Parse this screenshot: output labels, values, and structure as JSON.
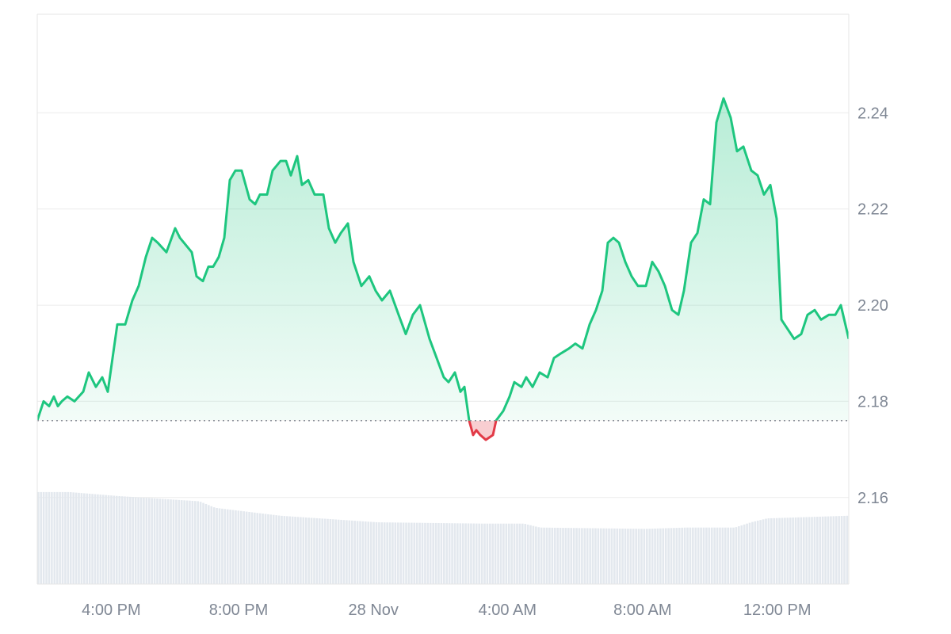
{
  "chart_data": {
    "type": "area",
    "colors": {
      "up_line": "#1ec67f",
      "down_line": "#e23a47",
      "baseline": "#8a8f99",
      "grid": "#ececec",
      "volume": "#e3e8ee"
    },
    "ylim": [
      2.142,
      2.2605
    ],
    "baseline_value": 2.176,
    "y_ticks": [
      {
        "value": 2.16,
        "label": "2.16"
      },
      {
        "value": 2.18,
        "label": "2.18"
      },
      {
        "value": 2.2,
        "label": "2.20"
      },
      {
        "value": 2.22,
        "label": "2.22"
      },
      {
        "value": 2.24,
        "label": "2.24"
      }
    ],
    "x_ticks": [
      {
        "value": 0.0912,
        "label": "4:00 PM"
      },
      {
        "value": 0.2481,
        "label": "8:00 PM"
      },
      {
        "value": 0.4143,
        "label": "28 Nov"
      },
      {
        "value": 0.5794,
        "label": "4:00 AM"
      },
      {
        "value": 0.7459,
        "label": "8:00 AM"
      },
      {
        "value": 0.9118,
        "label": "12:00 PM"
      }
    ],
    "price_points": [
      [
        0.0,
        2.176
      ],
      [
        0.0078,
        2.18
      ],
      [
        0.0146,
        2.179
      ],
      [
        0.0205,
        2.181
      ],
      [
        0.0254,
        2.179
      ],
      [
        0.0303,
        2.18
      ],
      [
        0.0371,
        2.181
      ],
      [
        0.0459,
        2.18
      ],
      [
        0.0566,
        2.182
      ],
      [
        0.0635,
        2.186
      ],
      [
        0.0723,
        2.183
      ],
      [
        0.0801,
        2.185
      ],
      [
        0.0869,
        2.182
      ],
      [
        0.0986,
        2.196
      ],
      [
        0.1084,
        2.196
      ],
      [
        0.1172,
        2.201
      ],
      [
        0.125,
        2.204
      ],
      [
        0.1338,
        2.21
      ],
      [
        0.1416,
        2.214
      ],
      [
        0.1484,
        2.213
      ],
      [
        0.1592,
        2.211
      ],
      [
        0.1699,
        2.216
      ],
      [
        0.1758,
        2.214
      ],
      [
        0.1904,
        2.211
      ],
      [
        0.1963,
        2.206
      ],
      [
        0.2041,
        2.205
      ],
      [
        0.2109,
        2.208
      ],
      [
        0.2168,
        2.208
      ],
      [
        0.2236,
        2.21
      ],
      [
        0.2305,
        2.214
      ],
      [
        0.2373,
        2.226
      ],
      [
        0.2441,
        2.228
      ],
      [
        0.2519,
        2.228
      ],
      [
        0.2617,
        2.222
      ],
      [
        0.2686,
        2.221
      ],
      [
        0.2744,
        2.223
      ],
      [
        0.2832,
        2.223
      ],
      [
        0.29,
        2.228
      ],
      [
        0.2998,
        2.23
      ],
      [
        0.3066,
        2.23
      ],
      [
        0.3125,
        2.227
      ],
      [
        0.3203,
        2.231
      ],
      [
        0.3262,
        2.225
      ],
      [
        0.334,
        2.226
      ],
      [
        0.3418,
        2.223
      ],
      [
        0.3525,
        2.223
      ],
      [
        0.3594,
        2.216
      ],
      [
        0.3672,
        2.213
      ],
      [
        0.374,
        2.215
      ],
      [
        0.3828,
        2.217
      ],
      [
        0.3896,
        2.209
      ],
      [
        0.3994,
        2.204
      ],
      [
        0.4092,
        2.206
      ],
      [
        0.417,
        2.203
      ],
      [
        0.4248,
        2.201
      ],
      [
        0.4346,
        2.203
      ],
      [
        0.4453,
        2.198
      ],
      [
        0.4541,
        2.194
      ],
      [
        0.4629,
        2.198
      ],
      [
        0.4717,
        2.2
      ],
      [
        0.4834,
        2.193
      ],
      [
        0.4922,
        2.189
      ],
      [
        0.501,
        2.185
      ],
      [
        0.5068,
        2.184
      ],
      [
        0.5146,
        2.186
      ],
      [
        0.5215,
        2.182
      ],
      [
        0.5264,
        2.183
      ],
      [
        0.5322,
        2.176
      ],
      [
        0.5371,
        2.173
      ],
      [
        0.541,
        2.174
      ],
      [
        0.5459,
        2.173
      ],
      [
        0.5527,
        2.172
      ],
      [
        0.5615,
        2.173
      ],
      [
        0.5654,
        2.176
      ],
      [
        0.5742,
        2.178
      ],
      [
        0.582,
        2.181
      ],
      [
        0.5879,
        2.184
      ],
      [
        0.5967,
        2.183
      ],
      [
        0.6025,
        2.185
      ],
      [
        0.6104,
        2.183
      ],
      [
        0.6191,
        2.186
      ],
      [
        0.6289,
        2.185
      ],
      [
        0.6367,
        2.189
      ],
      [
        0.6455,
        2.19
      ],
      [
        0.6553,
        2.191
      ],
      [
        0.6631,
        2.192
      ],
      [
        0.6719,
        2.191
      ],
      [
        0.6807,
        2.196
      ],
      [
        0.6885,
        2.199
      ],
      [
        0.6963,
        2.203
      ],
      [
        0.7031,
        2.213
      ],
      [
        0.71,
        2.214
      ],
      [
        0.7168,
        2.213
      ],
      [
        0.7246,
        2.209
      ],
      [
        0.7324,
        2.206
      ],
      [
        0.7402,
        2.204
      ],
      [
        0.75,
        2.204
      ],
      [
        0.7578,
        2.209
      ],
      [
        0.7656,
        2.207
      ],
      [
        0.7734,
        2.204
      ],
      [
        0.7822,
        2.199
      ],
      [
        0.79,
        2.198
      ],
      [
        0.7969,
        2.203
      ],
      [
        0.8057,
        2.213
      ],
      [
        0.8135,
        2.215
      ],
      [
        0.8213,
        2.222
      ],
      [
        0.8291,
        2.221
      ],
      [
        0.8369,
        2.238
      ],
      [
        0.8457,
        2.243
      ],
      [
        0.8545,
        2.239
      ],
      [
        0.8623,
        2.232
      ],
      [
        0.8701,
        2.233
      ],
      [
        0.8799,
        2.228
      ],
      [
        0.8877,
        2.227
      ],
      [
        0.8955,
        2.223
      ],
      [
        0.9033,
        2.225
      ],
      [
        0.9111,
        2.218
      ],
      [
        0.917,
        2.197
      ],
      [
        0.9248,
        2.195
      ],
      [
        0.9326,
        2.193
      ],
      [
        0.9414,
        2.194
      ],
      [
        0.9492,
        2.198
      ],
      [
        0.958,
        2.199
      ],
      [
        0.9658,
        2.197
      ],
      [
        0.9756,
        2.198
      ],
      [
        0.9834,
        2.198
      ],
      [
        0.9902,
        2.2
      ],
      [
        1.0,
        2.193
      ]
    ],
    "volume_levels": [
      [
        0.0,
        0.7
      ],
      [
        0.04,
        0.7
      ],
      [
        0.1,
        0.67
      ],
      [
        0.2,
        0.63
      ],
      [
        0.22,
        0.58
      ],
      [
        0.3,
        0.52
      ],
      [
        0.42,
        0.47
      ],
      [
        0.55,
        0.46
      ],
      [
        0.6,
        0.46
      ],
      [
        0.62,
        0.43
      ],
      [
        0.75,
        0.42
      ],
      [
        0.8,
        0.43
      ],
      [
        0.84,
        0.43
      ],
      [
        0.86,
        0.43
      ],
      [
        0.88,
        0.47
      ],
      [
        0.9,
        0.5
      ],
      [
        0.95,
        0.51
      ],
      [
        1.0,
        0.52
      ]
    ]
  }
}
